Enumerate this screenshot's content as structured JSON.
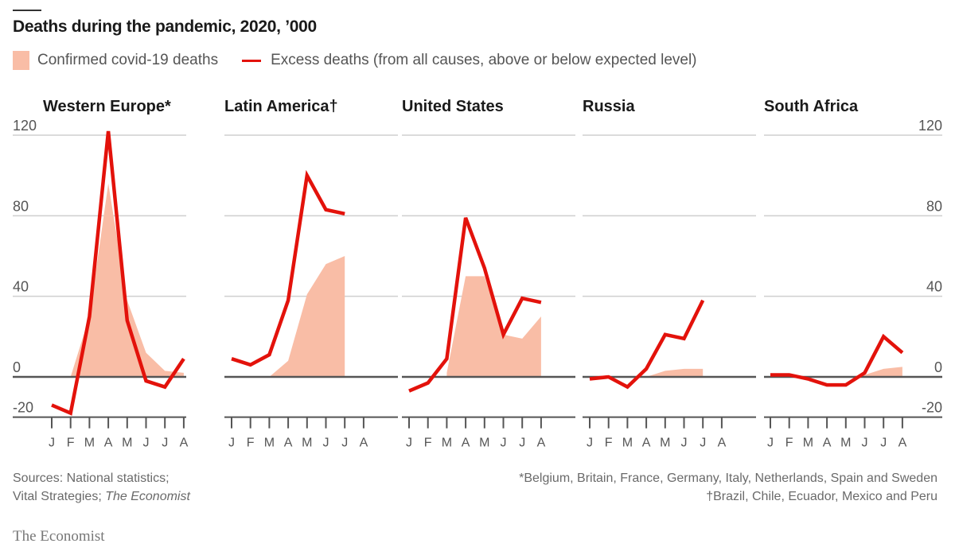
{
  "header": {
    "title": "Deaths during the pandemic, 2020, ’000"
  },
  "legend": {
    "area_label": "Confirmed covid-19 deaths",
    "line_label": "Excess deaths (from all causes, above or below expected level)"
  },
  "colors": {
    "area": "#f9bda6",
    "line": "#e3120b",
    "grid": "#cfcfcf",
    "zero": "#555555",
    "text": "#555555"
  },
  "footer": {
    "sources_line1": "Sources: National statistics;",
    "sources_line2_prefix": "Vital Strategies; ",
    "sources_line2_italic": "The Economist",
    "note1": "*Belgium, Britain, France, Germany, Italy, Netherlands, Spain and Sweden",
    "note2": "†Brazil, Chile, Ecuador, Mexico and Peru",
    "brand": "The Economist"
  },
  "chart_data": {
    "type": "line",
    "title": "Deaths during the pandemic, 2020, ’000",
    "xlabel": "",
    "ylabel": "",
    "ylim": [
      -20,
      120
    ],
    "yticks": [
      120,
      80,
      40,
      0,
      -20
    ],
    "ytick_labels": [
      "120",
      "80",
      "40",
      "0",
      "-20"
    ],
    "grid": true,
    "legend_position": "top-left",
    "x": [
      "J",
      "F",
      "M",
      "A",
      "M",
      "J",
      "J",
      "A"
    ],
    "panels": [
      {
        "name": "Western Europe*",
        "series": [
          {
            "name": "Confirmed covid-19 deaths",
            "kind": "area",
            "values": [
              0,
              0,
              30,
              96,
              38,
              12,
              3,
              2
            ]
          },
          {
            "name": "Excess deaths",
            "kind": "line",
            "values": [
              -14,
              -18,
              30,
              122,
              28,
              -2,
              -5,
              9
            ]
          }
        ]
      },
      {
        "name": "Latin America†",
        "series": [
          {
            "name": "Confirmed covid-19 deaths",
            "kind": "area",
            "values": [
              null,
              null,
              0,
              8,
              41,
              56,
              60,
              null
            ]
          },
          {
            "name": "Excess deaths",
            "kind": "line",
            "values": [
              9,
              6,
              11,
              38,
              100,
              83,
              81,
              null
            ]
          }
        ]
      },
      {
        "name": "United States",
        "series": [
          {
            "name": "Confirmed covid-19 deaths",
            "kind": "area",
            "values": [
              null,
              null,
              2,
              50,
              50,
              21,
              19,
              30
            ]
          },
          {
            "name": "Excess deaths",
            "kind": "line",
            "values": [
              -7,
              -3,
              9,
              79,
              54,
              21,
              39,
              37
            ]
          }
        ]
      },
      {
        "name": "Russia",
        "series": [
          {
            "name": "Confirmed covid-19 deaths",
            "kind": "area",
            "values": [
              null,
              null,
              null,
              0,
              3,
              4,
              4,
              null
            ]
          },
          {
            "name": "Excess deaths",
            "kind": "line",
            "values": [
              -1,
              0,
              -5,
              4,
              21,
              19,
              38,
              null
            ]
          }
        ]
      },
      {
        "name": "South Africa",
        "series": [
          {
            "name": "Confirmed covid-19 deaths",
            "kind": "area",
            "values": [
              null,
              null,
              null,
              null,
              0,
              1,
              4,
              5
            ]
          },
          {
            "name": "Excess deaths",
            "kind": "line",
            "values": [
              1,
              1,
              -1,
              -4,
              -4,
              2,
              20,
              12
            ]
          }
        ]
      }
    ]
  }
}
